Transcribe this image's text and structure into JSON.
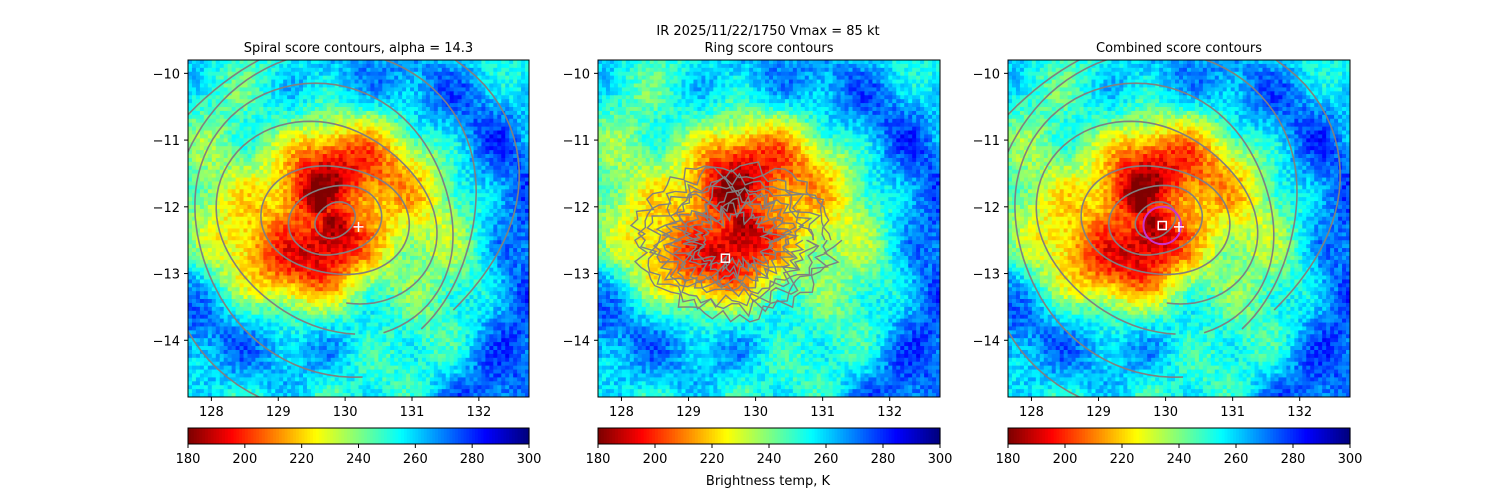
{
  "suptitle": "IR  2025/11/22/1750    Vmax = 85 kt",
  "colorbar_label": "Brightness temp, K",
  "colormap": "jet (reversed)",
  "colors": {
    "contour": "#808080",
    "marker": "#ffffff",
    "center_circle": "#cc33cc"
  },
  "chart_data": [
    {
      "type": "heatmap",
      "title": "Spiral score contours, alpha = 14.3",
      "xlim": [
        127.65,
        132.75
      ],
      "ylim": [
        -14.85,
        -9.8
      ],
      "xticks": [
        "128",
        "129",
        "130",
        "131",
        "132"
      ],
      "yticks": [
        "−10",
        "−11",
        "−12",
        "−13",
        "−14"
      ],
      "colorbar": {
        "range": [
          180,
          300
        ],
        "ticks": [
          "180",
          "200",
          "220",
          "240",
          "260",
          "280",
          "300"
        ]
      },
      "storm_center": [
        129.7,
        -12.1
      ],
      "markers": [
        {
          "type": "plus",
          "lon": 130.2,
          "lat": -12.3
        }
      ],
      "contours": "spiral",
      "grid": false
    },
    {
      "type": "heatmap",
      "title": "Ring score contours",
      "xlim": [
        127.65,
        132.75
      ],
      "ylim": [
        -14.85,
        -9.8
      ],
      "xticks": [
        "128",
        "129",
        "130",
        "131",
        "132"
      ],
      "yticks": [
        "−10",
        "−11",
        "−12",
        "−13",
        "−14"
      ],
      "colorbar": {
        "range": [
          180,
          300
        ],
        "ticks": [
          "180",
          "200",
          "220",
          "240",
          "260",
          "280",
          "300"
        ]
      },
      "storm_center": [
        129.7,
        -12.1
      ],
      "markers": [
        {
          "type": "square",
          "lon": 129.55,
          "lat": -12.77
        }
      ],
      "contours": "ring",
      "grid": false
    },
    {
      "type": "heatmap",
      "title": "Combined score contours",
      "xlim": [
        127.65,
        132.75
      ],
      "ylim": [
        -14.85,
        -9.8
      ],
      "xticks": [
        "128",
        "129",
        "130",
        "131",
        "132"
      ],
      "yticks": [
        "−10",
        "−11",
        "−12",
        "−13",
        "−14"
      ],
      "colorbar": {
        "range": [
          180,
          300
        ],
        "ticks": [
          "180",
          "200",
          "220",
          "240",
          "260",
          "280",
          "300"
        ]
      },
      "storm_center": [
        129.7,
        -12.1
      ],
      "markers": [
        {
          "type": "square",
          "lon": 129.95,
          "lat": -12.28
        },
        {
          "type": "plus",
          "lon": 130.2,
          "lat": -12.3
        }
      ],
      "contours": "spiral",
      "center_circle": {
        "lon": 129.95,
        "lat": -12.28,
        "radius_deg": 0.28
      },
      "grid": false
    }
  ]
}
